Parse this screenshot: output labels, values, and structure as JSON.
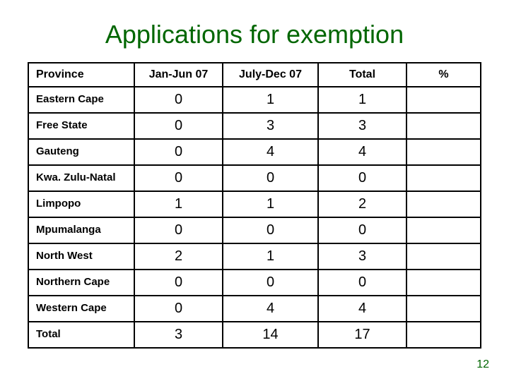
{
  "title": "Applications for exemption",
  "title_color": "#006600",
  "page_number": "12",
  "page_number_color": "#006600",
  "table": {
    "border_color": "#000000",
    "text_color": "#000000",
    "background_color": "#ffffff",
    "header_fontsize": 16,
    "label_fontsize": 15,
    "data_fontsize": 20,
    "columns": [
      "Province",
      "Jan-Jun 07",
      "July-Dec 07",
      "Total",
      "%"
    ],
    "col_align": [
      "left",
      "center",
      "center",
      "center",
      "center"
    ],
    "rows": [
      {
        "label": "Eastern Cape",
        "values": [
          "0",
          "1",
          "1",
          ""
        ]
      },
      {
        "label": "Free State",
        "values": [
          "0",
          "3",
          "3",
          ""
        ]
      },
      {
        "label": "Gauteng",
        "values": [
          "0",
          "4",
          "4",
          ""
        ]
      },
      {
        "label": "Kwa. Zulu-Natal",
        "values": [
          "0",
          "0",
          "0",
          ""
        ]
      },
      {
        "label": "Limpopo",
        "values": [
          "1",
          "1",
          "2",
          ""
        ]
      },
      {
        "label": "Mpumalanga",
        "values": [
          "0",
          "0",
          "0",
          ""
        ]
      },
      {
        "label": "North West",
        "values": [
          "2",
          "1",
          "3",
          ""
        ]
      },
      {
        "label": "Northern Cape",
        "values": [
          "0",
          "0",
          "0",
          ""
        ]
      },
      {
        "label": "Western Cape",
        "values": [
          "0",
          "4",
          "4",
          ""
        ]
      },
      {
        "label": "Total",
        "values": [
          "3",
          "14",
          "17",
          ""
        ]
      }
    ]
  }
}
